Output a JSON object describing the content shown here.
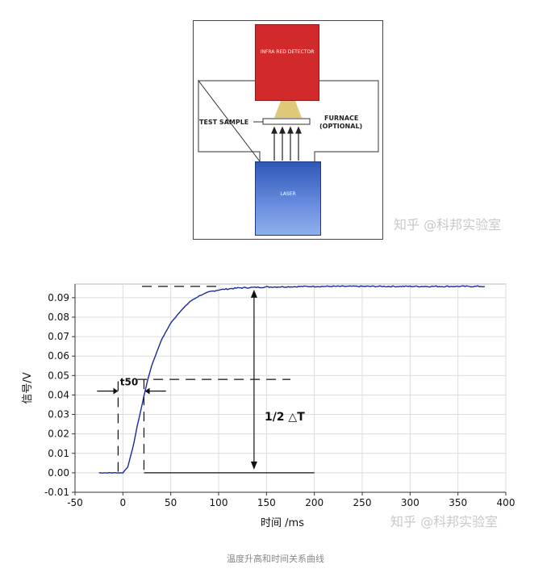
{
  "schematic": {
    "detector_label": "INFRA RED DETECTOR",
    "laser_label": "LASER",
    "test_sample_label": "TEST SAMPLE",
    "furnace_label": "FURNACE",
    "furnace_optional": "(OPTIONAL)",
    "watermark": "知乎 @科邦实验室",
    "colors": {
      "detector": "#d22a2a",
      "laser": "#3a63c4",
      "beam": "#d9c060"
    }
  },
  "chart_data": {
    "type": "line",
    "xlabel": "时间 /ms",
    "ylabel": "信号/V",
    "xlim": [
      -50,
      400
    ],
    "ylim": [
      -0.01,
      0.097
    ],
    "x_ticks": [
      "-50",
      "0",
      "50",
      "100",
      "150",
      "200",
      "250",
      "300",
      "350",
      "400"
    ],
    "y_ticks": [
      "0.09",
      "0.08",
      "0.07",
      "0.06",
      "0.05",
      "0.04",
      "0.03",
      "0.02",
      "0.01",
      "0.00",
      "-0.01"
    ],
    "series": [
      {
        "color": "#1a2a9c",
        "x": [
          -25,
          0,
          5,
          10,
          15,
          20,
          25,
          30,
          40,
          50,
          60,
          70,
          80,
          90,
          100,
          120,
          150,
          200,
          250,
          300,
          350,
          378
        ],
        "y": [
          0.0,
          0.0,
          0.003,
          0.012,
          0.024,
          0.035,
          0.046,
          0.055,
          0.068,
          0.077,
          0.083,
          0.088,
          0.091,
          0.093,
          0.094,
          0.095,
          0.0955,
          0.0958,
          0.0958,
          0.0958,
          0.0958,
          0.0958
        ]
      }
    ],
    "annotations": {
      "t50_label": "t50",
      "delta_label": "1/2 △T"
    },
    "grid": true,
    "watermark": "知乎 @科邦实验室"
  },
  "caption": "温度升高和时间关系曲线"
}
